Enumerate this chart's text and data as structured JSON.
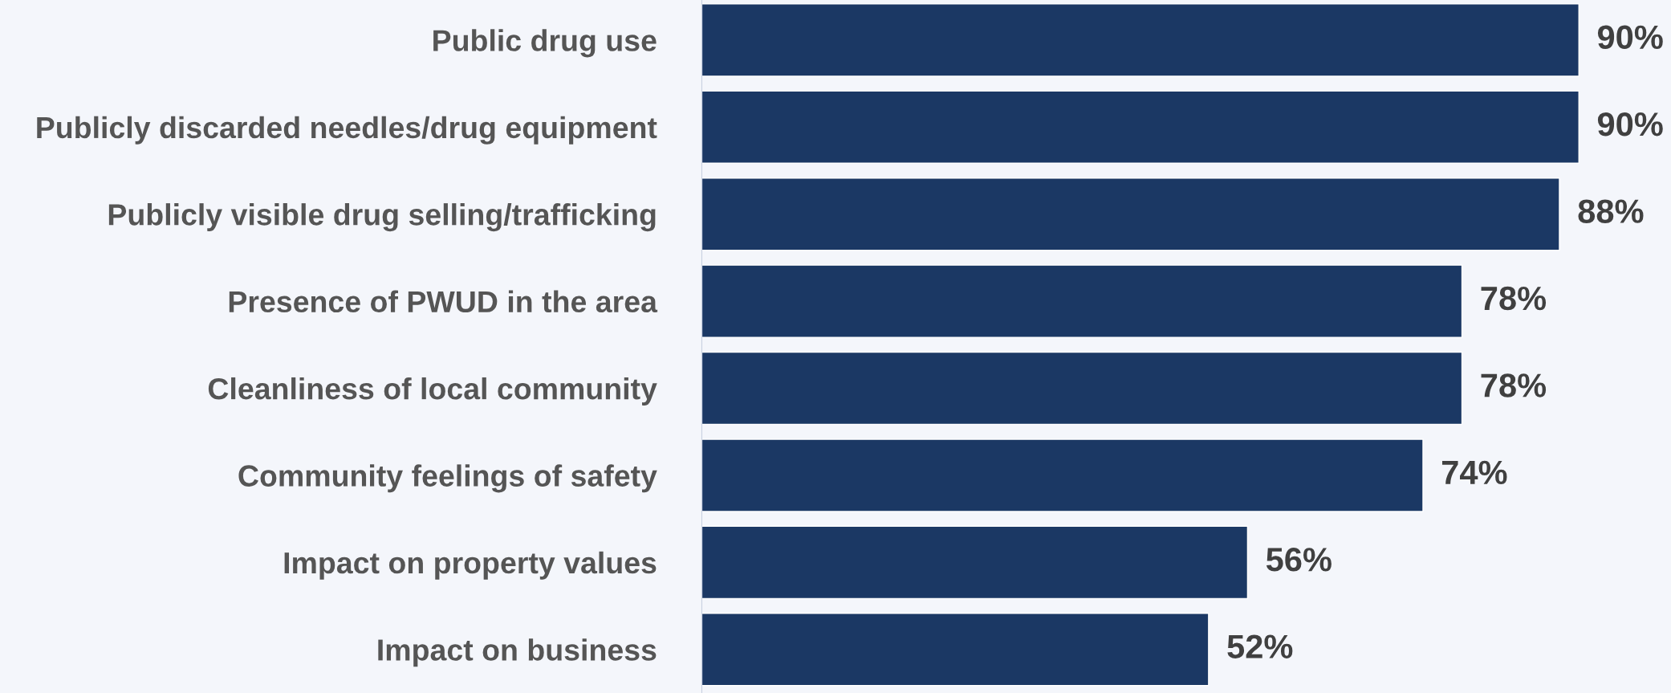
{
  "chart_data": {
    "type": "bar",
    "orientation": "horizontal",
    "categories": [
      "Public drug use",
      "Publicly discarded needles/drug equipment",
      "Publicly visible drug selling/trafficking",
      "Presence of PWUD in the area",
      "Cleanliness of local community",
      "Community feelings of safety",
      "Impact on property values",
      "Impact on business"
    ],
    "values": [
      90,
      90,
      88,
      78,
      78,
      74,
      56,
      52
    ],
    "value_labels": [
      "90%",
      "90%",
      "88%",
      "78%",
      "78%",
      "74%",
      "56%",
      "52%"
    ],
    "color": "#1b3864",
    "grid": false,
    "legend": false
  }
}
